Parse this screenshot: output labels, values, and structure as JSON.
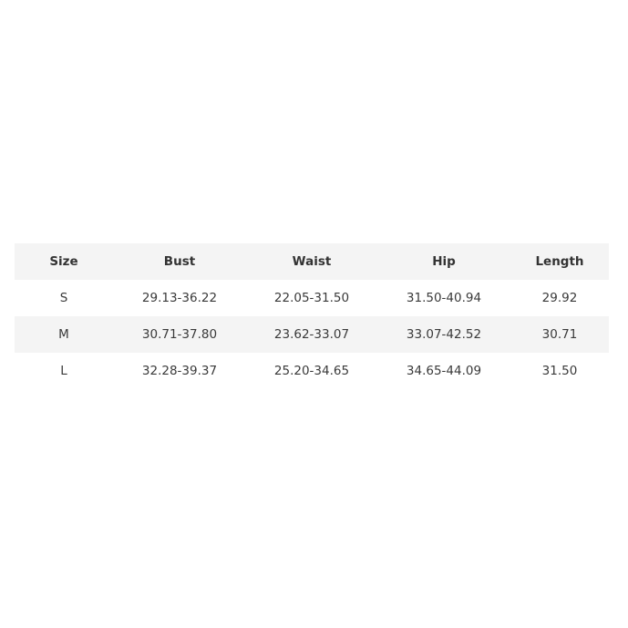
{
  "table": {
    "headers": [
      "Size",
      "Bust",
      "Waist",
      "Hip",
      "Length"
    ],
    "rows": [
      [
        "S",
        "29.13-36.22",
        "22.05-31.50",
        "31.50-40.94",
        "29.92"
      ],
      [
        "M",
        "30.71-37.80",
        "23.62-33.07",
        "33.07-42.52",
        "30.71"
      ],
      [
        "L",
        "32.28-39.37",
        "25.20-34.65",
        "34.65-44.09",
        "31.50"
      ]
    ],
    "shade_color": "#f4f4f4"
  }
}
